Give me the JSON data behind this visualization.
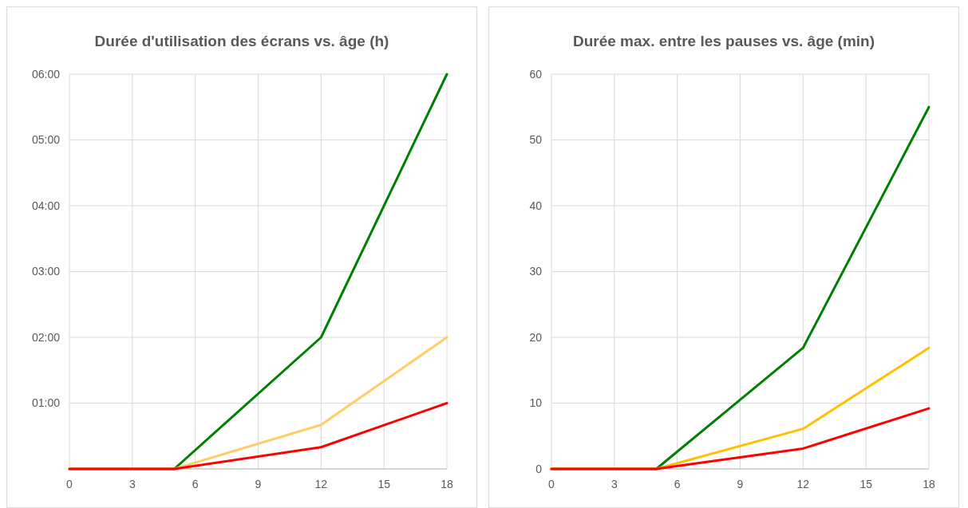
{
  "chart_data": [
    {
      "type": "line",
      "title": "Durée d'utilisation des écrans vs. âge (h)",
      "x": [
        0,
        5,
        12,
        18
      ],
      "xlim": [
        0,
        18
      ],
      "xticks": [
        0,
        3,
        6,
        9,
        12,
        15,
        18
      ],
      "ylim": [
        0,
        6
      ],
      "yticks": [
        {
          "value": 0,
          "label": null
        },
        {
          "value": 1,
          "label": "01:00"
        },
        {
          "value": 2,
          "label": "02:00"
        },
        {
          "value": 3,
          "label": "03:00"
        },
        {
          "value": 4,
          "label": "04:00"
        },
        {
          "value": 5,
          "label": "05:00"
        },
        {
          "value": 6,
          "label": "06:00"
        }
      ],
      "grid": true,
      "marker": "none",
      "line_style": "solid",
      "series": [
        {
          "color": "#008000",
          "values": [
            0,
            0,
            2,
            6
          ]
        },
        {
          "color": "#ffcc66",
          "values": [
            0,
            0,
            0.67,
            2
          ]
        },
        {
          "color": "#ff0000",
          "values": [
            0,
            0,
            0.33,
            1
          ]
        }
      ]
    },
    {
      "type": "line",
      "title": "Durée max. entre les pauses vs. âge (min)",
      "x": [
        0,
        5,
        12,
        18
      ],
      "xlim": [
        0,
        18
      ],
      "xticks": [
        0,
        3,
        6,
        9,
        12,
        15,
        18
      ],
      "ylim": [
        0,
        60
      ],
      "yticks": [
        0,
        10,
        20,
        30,
        40,
        50,
        60
      ],
      "grid": true,
      "marker": "none",
      "line_style": "solid",
      "series": [
        {
          "color": "#008000",
          "values": [
            0,
            0,
            18.4,
            55
          ]
        },
        {
          "color": "#ffc000",
          "values": [
            0,
            0,
            6.1,
            18.4
          ]
        },
        {
          "color": "#ff0000",
          "values": [
            0,
            0,
            3.1,
            9.2
          ]
        }
      ]
    }
  ]
}
